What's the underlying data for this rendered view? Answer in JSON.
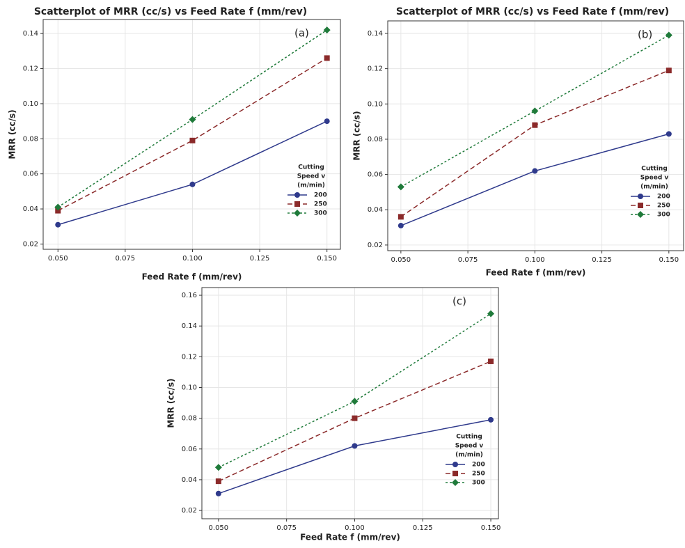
{
  "chart_data": [
    {
      "type": "line",
      "title": "Scatterplot of MRR (cc/s) vs Feed Rate f (mm/rev)",
      "annotation": "(a)",
      "x_label": "Feed Rate f (mm/rev)",
      "y_label": "MRR (cc/s)",
      "x": [
        0.05,
        0.1,
        0.15
      ],
      "xlim": [
        0.0445,
        0.155
      ],
      "xticks": [
        {
          "value": 0.05,
          "label": "0.050"
        },
        {
          "value": 0.075,
          "label": "0.075"
        },
        {
          "value": 0.1,
          "label": "0.100"
        },
        {
          "value": 0.125,
          "label": "0.125"
        },
        {
          "value": 0.15,
          "label": "0.150"
        }
      ],
      "ylim": [
        0.017,
        0.148
      ],
      "yticks": [
        0.02,
        0.04,
        0.06,
        0.08,
        {
          "value": 0.1,
          "label": "0.10"
        },
        0.12,
        0.14
      ],
      "grid": true,
      "legend_title": [
        "Cutting",
        "Speed v",
        "(m/min)"
      ],
      "legend": "lower right",
      "series": [
        {
          "name": "200",
          "color": "#2f3a8c",
          "marker": "circle",
          "line_style": "solid",
          "values": [
            0.031,
            0.054,
            0.09
          ]
        },
        {
          "name": "250",
          "color": "#8b2a2a",
          "marker": "square",
          "line_style": "dashed",
          "values": [
            0.039,
            0.079,
            0.126
          ]
        },
        {
          "name": "300",
          "color": "#1f7a3a",
          "marker": "diamond",
          "line_style": "dotted",
          "values": [
            0.041,
            0.091,
            0.142
          ]
        }
      ]
    },
    {
      "type": "line",
      "title": "Scatterplot of MRR (cc/s) vs Feed Rate f (mm/rev)",
      "annotation": "(b)",
      "x_label": "Feed Rate f (mm/rev)",
      "y_label": "MRR (cc/s)",
      "x": [
        0.05,
        0.1,
        0.15
      ],
      "xlim": [
        0.0451,
        0.1555
      ],
      "xticks": [
        {
          "value": 0.05,
          "label": "0.050"
        },
        {
          "value": 0.075,
          "label": "0.075"
        },
        {
          "value": 0.1,
          "label": "0.100"
        },
        {
          "value": 0.125,
          "label": "0.125"
        },
        {
          "value": 0.15,
          "label": "0.150"
        }
      ],
      "ylim": [
        0.0168,
        0.1471
      ],
      "yticks": [
        0.02,
        0.04,
        0.06,
        0.08,
        {
          "value": 0.1,
          "label": "0.10"
        },
        0.12,
        0.14
      ],
      "grid": true,
      "legend_title": [
        "Cutting",
        "Speed v",
        "(m/min)"
      ],
      "legend": "lower right",
      "series": [
        {
          "name": "200",
          "color": "#2f3a8c",
          "marker": "circle",
          "line_style": "solid",
          "values": [
            0.031,
            0.062,
            0.083
          ]
        },
        {
          "name": "250",
          "color": "#8b2a2a",
          "marker": "square",
          "line_style": "dashed",
          "values": [
            0.036,
            0.088,
            0.119
          ]
        },
        {
          "name": "300",
          "color": "#1f7a3a",
          "marker": "diamond",
          "line_style": "dotted",
          "values": [
            0.053,
            0.096,
            0.139
          ]
        }
      ]
    },
    {
      "type": "line",
      "annotation": "(c)",
      "x_label": "Feed Rate f (mm/rev)",
      "y_label": "MRR (cc/s)",
      "x": [
        0.05,
        0.1,
        0.15
      ],
      "xlim": [
        0.0439,
        0.1528
      ],
      "xticks": [
        {
          "value": 0.05,
          "label": "0.050"
        },
        {
          "value": 0.075,
          "label": "0.075"
        },
        {
          "value": 0.1,
          "label": "0.100"
        },
        {
          "value": 0.125,
          "label": "0.125"
        },
        {
          "value": 0.15,
          "label": "0.150"
        }
      ],
      "ylim": [
        0.0146,
        0.165
      ],
      "yticks": [
        0.02,
        0.04,
        0.06,
        0.08,
        {
          "value": 0.1,
          "label": "0.10"
        },
        0.12,
        0.14,
        0.16
      ],
      "grid": true,
      "legend_title": [
        "Cutting",
        "Speed v",
        "(m/min)"
      ],
      "legend": "lower right",
      "series": [
        {
          "name": "200",
          "color": "#2f3a8c",
          "marker": "circle",
          "line_style": "solid",
          "values": [
            0.031,
            0.062,
            0.079
          ]
        },
        {
          "name": "250",
          "color": "#8b2a2a",
          "marker": "square",
          "line_style": "dashed",
          "values": [
            0.039,
            0.08,
            0.117
          ]
        },
        {
          "name": "300",
          "color": "#1f7a3a",
          "marker": "diamond",
          "line_style": "dotted",
          "values": [
            0.048,
            0.091,
            0.148
          ]
        }
      ]
    }
  ]
}
